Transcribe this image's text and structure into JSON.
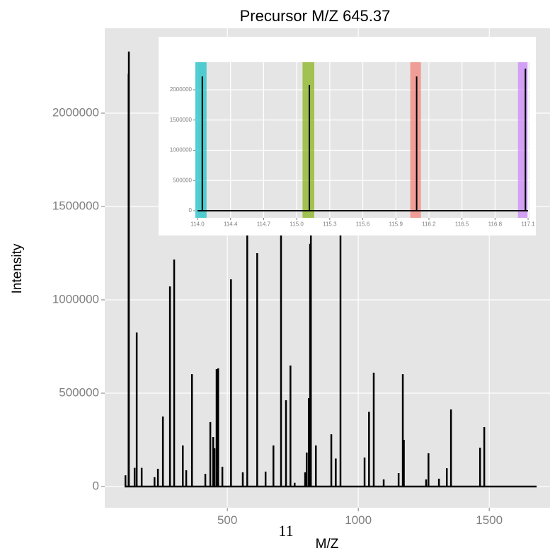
{
  "chart_data": [
    {
      "type": "spectrum",
      "title": "Precursor M/Z 645.37",
      "x_label": "M/Z",
      "y_label": "Intensity",
      "color": "#000000",
      "grid": true,
      "x": [
        108,
        111,
        123,
        124,
        146,
        154,
        173,
        222,
        235,
        254,
        281,
        297,
        330,
        343,
        365,
        416,
        435,
        446,
        451,
        459,
        465,
        481,
        514,
        559,
        576,
        614,
        646,
        676,
        705,
        724,
        741,
        757,
        797,
        803,
        811,
        816,
        819,
        838,
        897,
        914,
        932,
        1024,
        1041,
        1059,
        1097,
        1154,
        1170,
        1174,
        1259,
        1268,
        1308,
        1338,
        1354,
        1465,
        1481,
        1681
      ],
      "values": [
        0,
        60000,
        2210000,
        2330000,
        100000,
        825000,
        100000,
        50000,
        95000,
        375000,
        1072000,
        1216000,
        220000,
        87000,
        602000,
        68000,
        345000,
        265000,
        205000,
        629000,
        633000,
        106000,
        1110000,
        76000,
        1500000,
        1250000,
        80000,
        220000,
        1600000,
        462000,
        648000,
        20000,
        76000,
        182000,
        473000,
        1300000,
        1400000,
        220000,
        280000,
        150000,
        1700000,
        155000,
        400000,
        610000,
        38000,
        72000,
        602000,
        250000,
        38000,
        178000,
        42000,
        98000,
        413000,
        208000,
        318000,
        0
      ],
      "xlim": [
        32,
        1732
      ],
      "ylim": [
        -113636,
        2454545
      ],
      "xticks": [
        500,
        1000,
        1500
      ],
      "yticks": [
        0,
        500000,
        1000000,
        1500000,
        2000000
      ]
    },
    {
      "type": "spectrum",
      "color": "#000000",
      "grid": true,
      "x": [
        114.045,
        114.09,
        115.094,
        116.1,
        117.12,
        117.145
      ],
      "values": [
        0,
        2220000,
        2080000,
        2220000,
        2350000,
        0
      ],
      "regions": [
        {
          "xmin": 114.025,
          "xmax": 114.13,
          "color": "#00BFC4"
        },
        {
          "xmin": 115.03,
          "xmax": 115.14,
          "color": "#7CAE00"
        },
        {
          "xmin": 116.04,
          "xmax": 116.14,
          "color": "#F8766D"
        },
        {
          "xmin": 117.05,
          "xmax": 117.14,
          "color": "#C77CFF"
        }
      ],
      "xlim": [
        114.025,
        117.158
      ],
      "ylim": [
        -117000,
        2456000
      ],
      "xticks": [
        {
          "value": 114.045,
          "label": "114.0"
        },
        {
          "value": 114.355,
          "label": "114.4"
        },
        {
          "value": 114.665,
          "label": "114.7"
        },
        {
          "value": 114.975,
          "label": "115.0"
        },
        {
          "value": 115.285,
          "label": "115.3"
        },
        {
          "value": 115.595,
          "label": "115.6"
        },
        {
          "value": 115.905,
          "label": "115.9"
        },
        {
          "value": 116.215,
          "label": "116.2"
        },
        {
          "value": 116.525,
          "label": "116.5"
        },
        {
          "value": 116.835,
          "label": "116.8"
        },
        {
          "value": 117.145,
          "label": "117.1"
        }
      ],
      "yticks": [
        0,
        500000,
        1000000,
        1500000,
        2000000
      ]
    }
  ],
  "page_number": "11"
}
